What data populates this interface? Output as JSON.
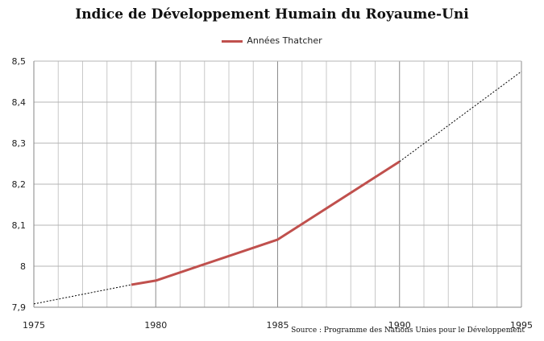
{
  "chart_data": {
    "type": "line",
    "title": "Indice de Développement Humain du Royaume-Uni",
    "source": "Source : Programme des Nations Unies pour le Développement",
    "xlim": [
      1975,
      1995
    ],
    "ylim": [
      7.9,
      8.5
    ],
    "x_ticks": [
      "1975",
      "1980",
      "1985",
      "1990",
      "1995"
    ],
    "y_ticks": [
      "7,9",
      "8",
      "8,1",
      "8,2",
      "8,3",
      "8,4",
      "8,5"
    ],
    "grid": true,
    "legend_position": "top-center",
    "series": [
      {
        "name": "Années Thatcher",
        "style": "solid",
        "color": "#c0504d",
        "x": [
          1979,
          1980,
          1985,
          1990
        ],
        "y": [
          7.955,
          7.965,
          8.065,
          8.255
        ]
      },
      {
        "style": "dotted",
        "color": "#000000",
        "x": [
          1975,
          1979
        ],
        "y": [
          7.908,
          7.955
        ]
      },
      {
        "style": "dotted",
        "color": "#000000",
        "x": [
          1990,
          1995
        ],
        "y": [
          8.255,
          8.475
        ]
      }
    ]
  }
}
